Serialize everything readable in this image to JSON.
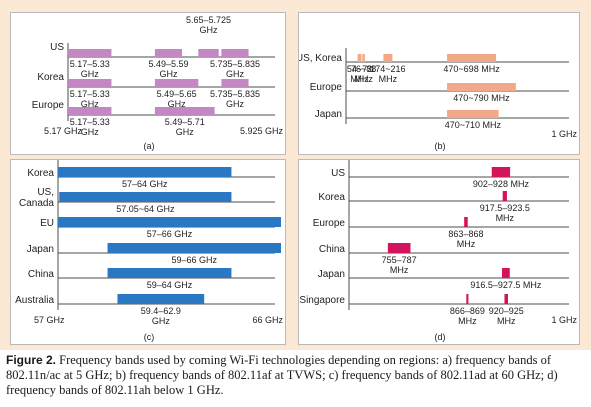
{
  "panels": {
    "a": {
      "label": "(a)",
      "color": "#c388c4",
      "rows": [
        "US",
        "Korea",
        "Europe"
      ],
      "axis_start": "5.17 GHz",
      "axis_end": "5.925 GHz",
      "top_label": [
        "5.65–5.725",
        "GHz"
      ],
      "bars": [
        {
          "row": 0,
          "x0": 5.17,
          "x1": 5.33,
          "label": [
            "5.17–5.33",
            "GHz"
          ]
        },
        {
          "row": 0,
          "x0": 5.49,
          "x1": 5.59,
          "label": [
            "5.49–5.59",
            "GHz"
          ]
        },
        {
          "row": 0,
          "x0": 5.65,
          "x1": 5.725,
          "label": []
        },
        {
          "row": 0,
          "x0": 5.735,
          "x1": 5.835,
          "label": [
            "5.735–5.835",
            "GHz"
          ]
        },
        {
          "row": 1,
          "x0": 5.17,
          "x1": 5.33,
          "label": [
            "5.17–5.33",
            "GHz"
          ]
        },
        {
          "row": 1,
          "x0": 5.49,
          "x1": 5.65,
          "label": [
            "5.49–5.65",
            "GHz"
          ]
        },
        {
          "row": 1,
          "x0": 5.735,
          "x1": 5.835,
          "label": [
            "5.735–5.835",
            "GHz"
          ]
        },
        {
          "row": 2,
          "x0": 5.17,
          "x1": 5.33,
          "label": [
            "5.17–5.33",
            "GHz"
          ]
        },
        {
          "row": 2,
          "x0": 5.49,
          "x1": 5.71,
          "label": [
            "5.49–5.71",
            "GHz"
          ]
        }
      ]
    },
    "b": {
      "label": "(b)",
      "color": "#f2a98a",
      "rows": [
        "US, Korea",
        "Europe",
        "Japan"
      ],
      "axis_end": "1 GHz",
      "bars": [
        {
          "row": 0,
          "x0": 54,
          "x1": 72,
          "label": [
            "54~72",
            "MHz"
          ]
        },
        {
          "row": 0,
          "x0": 76,
          "x1": 88,
          "label": [
            "76~88",
            "MHz"
          ]
        },
        {
          "row": 0,
          "x0": 174,
          "x1": 216,
          "label": [
            "174~216",
            "MHz"
          ]
        },
        {
          "row": 0,
          "x0": 470,
          "x1": 698,
          "label": [
            "470~698 MHz"
          ]
        },
        {
          "row": 1,
          "x0": 470,
          "x1": 790,
          "label": [
            "470~790 MHz"
          ]
        },
        {
          "row": 2,
          "x0": 470,
          "x1": 710,
          "label": [
            "470~710 MHz"
          ]
        }
      ]
    },
    "c": {
      "label": "(c)",
      "color": "#2a78c4",
      "rows": [
        "Korea",
        "US, Canada",
        "EU",
        "Japan",
        "China",
        "Australia"
      ],
      "axis_start": "57 GHz",
      "axis_end": "66 GHz",
      "bars": [
        {
          "row": 0,
          "x0": 57,
          "x1": 64,
          "label": [
            "57–64 GHz"
          ]
        },
        {
          "row": 1,
          "x0": 57.05,
          "x1": 64,
          "label": [
            "57.05~64 GHz"
          ]
        },
        {
          "row": 2,
          "x0": 57,
          "x1": 66,
          "label": [
            "57–66 GHz"
          ]
        },
        {
          "row": 3,
          "x0": 59,
          "x1": 66,
          "label": [
            "59–66 GHz"
          ]
        },
        {
          "row": 4,
          "x0": 59,
          "x1": 64,
          "label": [
            "59–64 GHz"
          ]
        },
        {
          "row": 5,
          "x0": 59.4,
          "x1": 62.9,
          "label": [
            "59.4–62.9",
            "GHz"
          ]
        }
      ]
    },
    "d": {
      "label": "(d)",
      "color": "#d5135c",
      "rows": [
        "US",
        "Korea",
        "Europe",
        "China",
        "Japan",
        "Singapore"
      ],
      "axis_end": "1 GHz",
      "bars": [
        {
          "row": 0,
          "x0": 902,
          "x1": 928,
          "label": [
            "902–928 MHz"
          ]
        },
        {
          "row": 1,
          "x0": 917.5,
          "x1": 923.5,
          "label": [
            "917.5–923.5",
            "MHz"
          ]
        },
        {
          "row": 2,
          "x0": 863,
          "x1": 868,
          "label": [
            "863–868",
            "MHz"
          ]
        },
        {
          "row": 3,
          "x0": 755,
          "x1": 787,
          "label": [
            "755–787",
            "MHz"
          ]
        },
        {
          "row": 4,
          "x0": 916.5,
          "x1": 927.5,
          "label": [
            "916.5–927.5 MHz"
          ]
        },
        {
          "row": 5,
          "x0": 866,
          "x1": 869,
          "label": [
            "866–869",
            "MHz"
          ]
        },
        {
          "row": 5,
          "x0": 920,
          "x1": 925,
          "label": [
            "920–925",
            "MHz"
          ]
        }
      ]
    }
  },
  "caption": {
    "label": "Figure 2.",
    "text": "Frequency bands used by coming Wi-Fi technologies depending on regions: a) frequency bands of 802.11n/ac at 5 GHz; b) frequency bands of 802.11af at TVWS; c) frequency bands of 802.11ad at 60 GHz; d) frequency bands of 802.11ah below 1 GHz."
  }
}
